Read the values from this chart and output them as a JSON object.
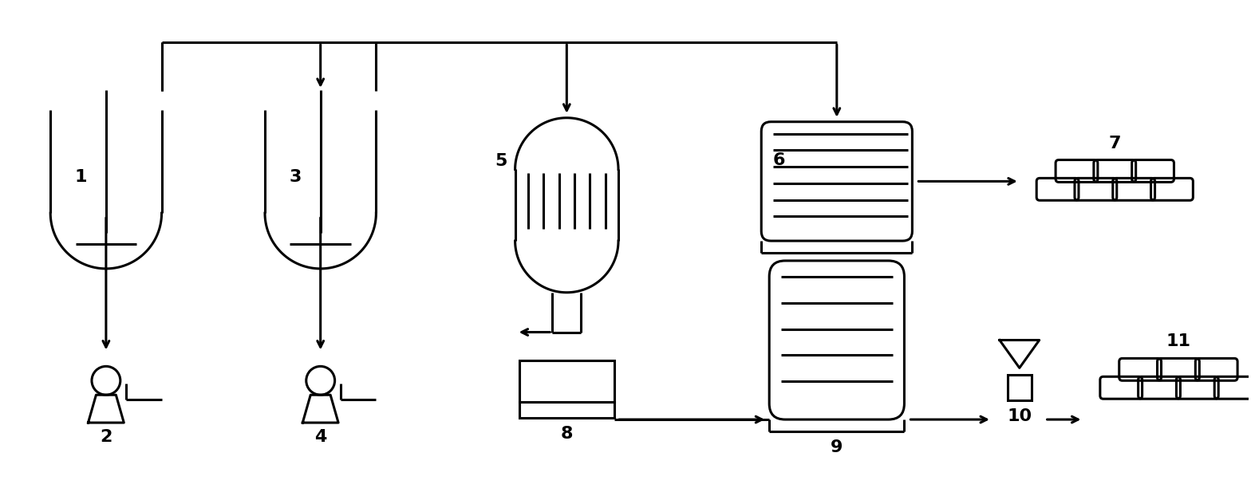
{
  "bg_color": "#ffffff",
  "line_color": "#000000",
  "lw": 2.2,
  "fig_width": 15.68,
  "fig_height": 6.27,
  "dpi": 100,
  "xlim": [
    0,
    156.8
  ],
  "ylim": [
    0,
    62.7
  ]
}
